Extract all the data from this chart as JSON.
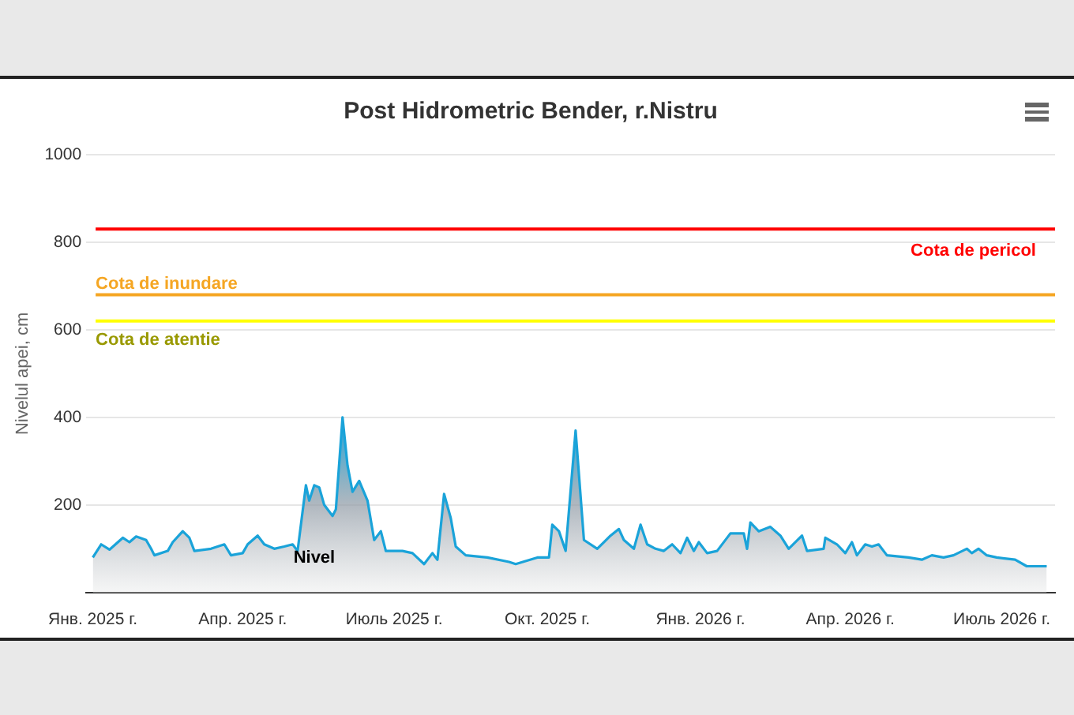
{
  "chart_data": {
    "type": "area",
    "title": "Post Hidrometric Bender, r.Nistru",
    "ylabel": "Nivelul apei, cm",
    "xlim": [
      "2024-12-28",
      "2026-08-02"
    ],
    "xticks": [
      {
        "value": "2025-01-01",
        "label": "Янв. 2025 г."
      },
      {
        "value": "2025-04-01",
        "label": "Апр. 2025 г."
      },
      {
        "value": "2025-07-01",
        "label": "Июль 2025 г."
      },
      {
        "value": "2025-10-01",
        "label": "Окт. 2025 г."
      },
      {
        "value": "2026-01-01",
        "label": "Янв. 2026 г."
      },
      {
        "value": "2026-04-01",
        "label": "Апр. 2026 г."
      },
      {
        "value": "2026-07-01",
        "label": "Июль 2026 г."
      }
    ],
    "ylim": [
      0,
      1000
    ],
    "yticks": [
      200,
      400,
      600,
      800,
      1000
    ],
    "grid": "y",
    "legend": false,
    "ref_lines": [
      {
        "axis": "y",
        "value": 830,
        "label": "Cota de pericol",
        "color": "#ff0000"
      },
      {
        "axis": "y",
        "value": 680,
        "label": "Cota de inundare",
        "color": "#f5a623"
      },
      {
        "axis": "y",
        "value": 620,
        "label": "Cota de atentie",
        "color": "#ffff00"
      }
    ],
    "series": [
      {
        "name": "Nivel",
        "color": "#1aa3d9",
        "x": [
          "2025-01-01",
          "2025-01-06",
          "2025-01-11",
          "2025-01-19",
          "2025-01-23",
          "2025-01-27",
          "2025-02-02",
          "2025-02-05",
          "2025-02-07",
          "2025-02-15",
          "2025-02-18",
          "2025-02-24",
          "2025-02-28",
          "2025-03-03",
          "2025-03-13",
          "2025-03-21",
          "2025-03-25",
          "2025-04-01",
          "2025-04-04",
          "2025-04-10",
          "2025-04-14",
          "2025-04-20",
          "2025-04-26",
          "2025-05-01",
          "2025-05-04",
          "2025-05-09",
          "2025-05-11",
          "2025-05-14",
          "2025-05-17",
          "2025-05-20",
          "2025-05-25",
          "2025-05-27",
          "2025-05-31",
          "2025-06-03",
          "2025-06-06",
          "2025-06-10",
          "2025-06-15",
          "2025-06-19",
          "2025-06-23",
          "2025-06-26",
          "2025-07-06",
          "2025-07-12",
          "2025-07-19",
          "2025-07-24",
          "2025-07-27",
          "2025-07-31",
          "2025-08-04",
          "2025-08-07",
          "2025-08-13",
          "2025-08-26",
          "2025-09-08",
          "2025-09-12",
          "2025-09-25",
          "2025-10-02",
          "2025-10-04",
          "2025-10-08",
          "2025-10-12",
          "2025-10-18",
          "2025-10-23",
          "2025-10-31",
          "2025-11-08",
          "2025-11-13",
          "2025-11-16",
          "2025-11-22",
          "2025-11-26",
          "2025-11-30",
          "2025-12-05",
          "2025-12-10",
          "2025-12-15",
          "2025-12-20",
          "2025-12-24",
          "2025-12-28",
          "2025-12-31",
          "2026-01-05",
          "2026-01-11",
          "2026-01-19",
          "2026-01-27",
          "2026-01-29",
          "2026-01-31",
          "2026-02-05",
          "2026-02-12",
          "2026-02-18",
          "2026-02-23",
          "2026-03-03",
          "2026-03-06",
          "2026-03-16",
          "2026-03-17",
          "2026-03-24",
          "2026-03-29",
          "2026-04-02",
          "2026-04-05",
          "2026-04-10",
          "2026-04-14",
          "2026-04-18",
          "2026-04-23",
          "2026-05-06",
          "2026-05-14",
          "2026-05-20",
          "2026-05-27",
          "2026-06-02",
          "2026-06-10",
          "2026-06-13",
          "2026-06-17",
          "2026-06-22",
          "2026-06-28",
          "2026-07-09",
          "2026-07-16",
          "2026-07-28"
        ],
        "values": [
          80,
          110,
          98,
          125,
          115,
          128,
          120,
          100,
          85,
          95,
          115,
          140,
          125,
          95,
          100,
          110,
          85,
          90,
          110,
          130,
          110,
          100,
          105,
          110,
          95,
          245,
          210,
          245,
          240,
          200,
          175,
          190,
          400,
          290,
          230,
          255,
          210,
          120,
          140,
          95,
          95,
          90,
          65,
          90,
          75,
          225,
          170,
          105,
          85,
          80,
          70,
          65,
          80,
          80,
          155,
          140,
          95,
          370,
          120,
          100,
          130,
          145,
          120,
          100,
          155,
          110,
          100,
          95,
          110,
          90,
          125,
          95,
          115,
          90,
          95,
          135,
          135,
          100,
          160,
          140,
          150,
          130,
          100,
          130,
          95,
          100,
          125,
          110,
          90,
          115,
          85,
          110,
          105,
          110,
          85,
          80,
          75,
          85,
          80,
          85,
          100,
          90,
          100,
          85,
          80,
          75,
          60,
          60
        ]
      }
    ]
  }
}
